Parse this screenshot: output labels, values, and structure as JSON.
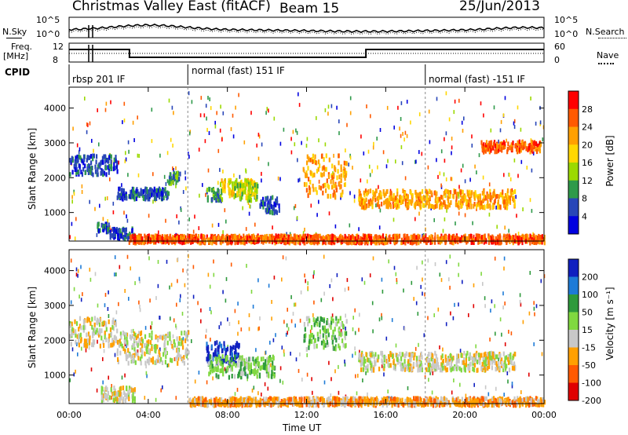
{
  "header": {
    "station": "Christmas Valley East (fitACF)",
    "beam": "Beam 15",
    "date": "25/Jun/2013"
  },
  "top_panels": {
    "nsky_label": "N.Sky",
    "nsky_ticks": [
      "10^5",
      "10^0"
    ],
    "nsearch_label": "N.Search",
    "freq_label_1": "Freq.",
    "freq_label_2": "[MHz]",
    "freq_ticks": [
      "12",
      "8"
    ],
    "nave_label": "Nave",
    "nave_ticks": [
      "60",
      "0"
    ],
    "cpid_label": "CPID",
    "cpid_segments": [
      "rbsp 201 IF",
      "normal (fast) 151 IF",
      "normal (fast) -151 IF"
    ]
  },
  "chart_data": [
    {
      "type": "heatmap",
      "name": "power",
      "ylabel": "Slant Range [km]",
      "xlabel": "Time UT",
      "x_ticks": [
        "00:00",
        "04:00",
        "08:00",
        "12:00",
        "16:00",
        "20:00",
        "00:00"
      ],
      "y_ticks": [
        "1000",
        "2000",
        "3000",
        "4000"
      ],
      "xlim_hours": [
        0,
        24
      ],
      "ylim_km": [
        180,
        4600
      ],
      "colorbar_label": "Power [dB]",
      "colorbar_ticks": [
        "28",
        "24",
        "20",
        "16",
        "12",
        "8",
        "4"
      ],
      "colorbar_colors": [
        "#ff0000",
        "#ff5a00",
        "#ffa000",
        "#ffd700",
        "#9bd900",
        "#2f9a4a",
        "#2846b8",
        "#0000e0"
      ],
      "regions": [
        {
          "t": [
            0.0,
            2.4
          ],
          "r": [
            2150,
            2700
          ],
          "level": 6
        },
        {
          "t": [
            2.4,
            5.0
          ],
          "r": [
            1450,
            1750
          ],
          "level": 6
        },
        {
          "t": [
            5.0,
            5.6
          ],
          "r": [
            1900,
            2200
          ],
          "level": 5
        },
        {
          "t": [
            6.9,
            7.7
          ],
          "r": [
            1400,
            1750
          ],
          "level": 5
        },
        {
          "t": [
            7.6,
            9.4
          ],
          "r": [
            1500,
            2000
          ],
          "level": 3
        },
        {
          "t": [
            8.3,
            9.5
          ],
          "r": [
            1400,
            1900
          ],
          "level": 4
        },
        {
          "t": [
            9.6,
            10.6
          ],
          "r": [
            1050,
            1500
          ],
          "level": 6
        },
        {
          "t": [
            1.4,
            2.0
          ],
          "r": [
            500,
            750
          ],
          "level": 6
        },
        {
          "t": [
            2.0,
            3.3
          ],
          "r": [
            300,
            600
          ],
          "level": 6
        },
        {
          "t": [
            11.8,
            14.0
          ],
          "r": [
            1500,
            2700
          ],
          "level": 2
        },
        {
          "t": [
            14.6,
            22.5
          ],
          "r": [
            1200,
            1700
          ],
          "level": 2
        },
        {
          "t": [
            20.8,
            23.8
          ],
          "r": [
            2800,
            3100
          ],
          "level": 1
        },
        {
          "t": [
            3.0,
            24.0
          ],
          "r": [
            190,
            400
          ],
          "level": 1
        }
      ]
    },
    {
      "type": "heatmap",
      "name": "velocity",
      "ylabel": "Slant Range [km]",
      "xlabel": "Time UT",
      "x_ticks": [
        "00:00",
        "04:00",
        "08:00",
        "12:00",
        "16:00",
        "20:00",
        "00:00"
      ],
      "y_ticks": [
        "1000",
        "2000",
        "3000",
        "4000"
      ],
      "xlim_hours": [
        0,
        24
      ],
      "ylim_km": [
        180,
        4600
      ],
      "colorbar_label": "Velocity [m s⁻¹]",
      "colorbar_ticks": [
        "200",
        "100",
        "50",
        "15",
        "-15",
        "-50",
        "-100",
        "-200"
      ],
      "colorbar_colors": [
        "#1020c0",
        "#1e7bd7",
        "#2e9a3c",
        "#80d840",
        "#c8c8c8",
        "#ffa000",
        "#ff5a00",
        "#e00000"
      ],
      "regions": [
        {
          "t": [
            0.0,
            2.4
          ],
          "r": [
            1900,
            2700
          ],
          "level": 4
        },
        {
          "t": [
            2.4,
            6.0
          ],
          "r": [
            1400,
            2300
          ],
          "level": 4
        },
        {
          "t": [
            6.9,
            8.6
          ],
          "r": [
            1400,
            2000
          ],
          "level": 0
        },
        {
          "t": [
            7.0,
            10.4
          ],
          "r": [
            1000,
            1600
          ],
          "level": 3
        },
        {
          "t": [
            1.6,
            3.3
          ],
          "r": [
            300,
            700
          ],
          "level": 4
        },
        {
          "t": [
            11.8,
            14.0
          ],
          "r": [
            1800,
            2700
          ],
          "level": 3
        },
        {
          "t": [
            14.6,
            22.5
          ],
          "r": [
            1200,
            1700
          ],
          "level": 4
        },
        {
          "t": [
            6.0,
            24.0
          ],
          "r": [
            190,
            400
          ],
          "level": 5
        }
      ]
    }
  ]
}
